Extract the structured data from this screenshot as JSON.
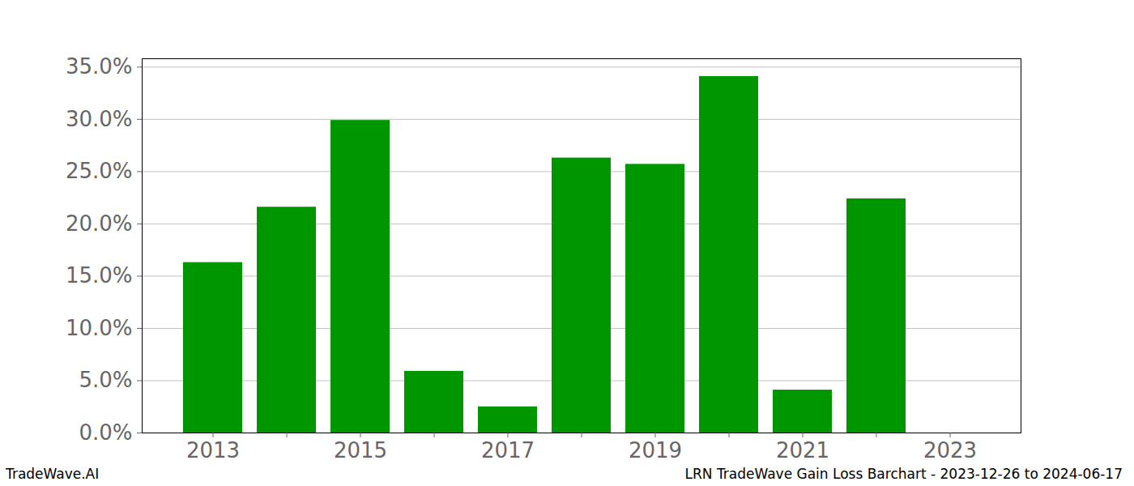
{
  "chart_data": {
    "type": "bar",
    "caption": "TradeWave.AI",
    "source": "LRN TradeWave Gain Loss Barchart - 2023-12-26 to 2024-06-17",
    "categories": [
      "2013",
      null,
      "2015",
      null,
      "2017",
      null,
      "2019",
      null,
      "2021",
      null,
      "2023"
    ],
    "values": [
      16.3,
      21.6,
      29.9,
      5.9,
      2.5,
      26.3,
      25.7,
      34.1,
      4.1,
      22.4,
      null
    ],
    "color": "#009600",
    "ylim": [
      0,
      35.8
    ],
    "yticks": [
      {
        "value": 0,
        "label": "0.0%"
      },
      {
        "value": 5,
        "label": "5.0%"
      },
      {
        "value": 10,
        "label": "10.0%"
      },
      {
        "value": 15,
        "label": "15.0%"
      },
      {
        "value": 20,
        "label": "20.0%"
      },
      {
        "value": 25,
        "label": "25.0%"
      },
      {
        "value": 30,
        "label": "30.0%"
      },
      {
        "value": 35,
        "label": "35.0%"
      }
    ],
    "grid": true
  }
}
